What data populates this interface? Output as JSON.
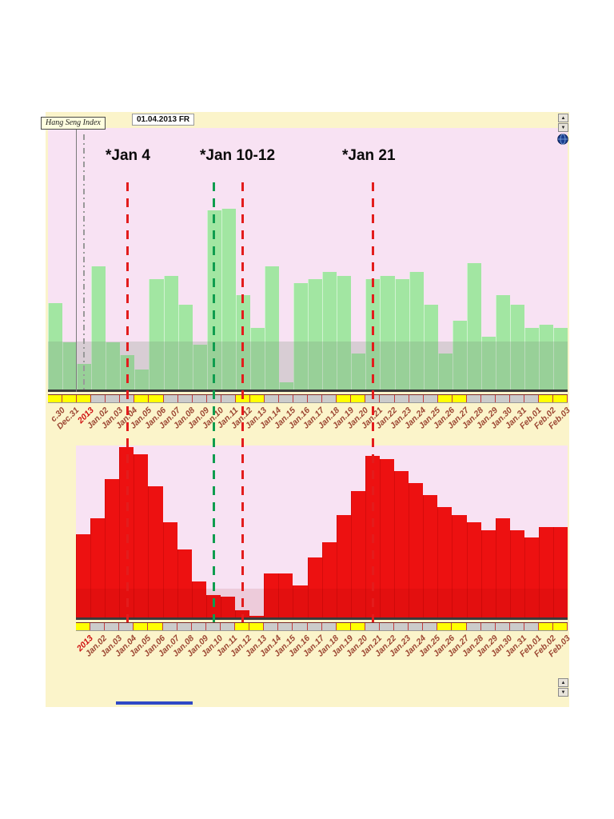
{
  "window": {
    "instrument_label": "Hang Seng Index",
    "date_readout": "01.04.2013 FR"
  },
  "annotations": [
    {
      "text": "*Jan 4"
    },
    {
      "text": "*Jan 10-12"
    },
    {
      "text": "*Jan 21"
    }
  ],
  "scrollbars": {
    "up_glyph": "▲",
    "down_glyph": "▼"
  },
  "colors": {
    "page_bg": "#ffffff",
    "app_bg": "#fbf4ca",
    "plot_bg": "#f8e2f3",
    "green_bar": "#a2e6a2",
    "red_bar": "#ed1111",
    "weekend_band": "#ffff00",
    "band_bg": "#cbcbcb",
    "tick_red": "#c23b3b",
    "label_color": "#9c4733",
    "year_label_color": "#cf1010",
    "marker_red": "#e31c1c",
    "marker_green": "#0f9d4f",
    "cursor_gray": "#999999"
  },
  "chart_data": [
    {
      "type": "bar",
      "panel": "upper",
      "title": "",
      "xlabel": "",
      "ylabel": "",
      "ylim": [
        0,
        100
      ],
      "units": "relative-percent (no y-axis labels visible)",
      "categories": [
        "c.30",
        "Dec.31",
        "2013",
        "Jan.02",
        "Jan.03",
        "Jan.04",
        "Jan.05",
        "Jan.06",
        "Jan.07",
        "Jan.08",
        "Jan.09",
        "Jan.10",
        "Jan.11",
        "Jan.12",
        "Jan.13",
        "Jan.14",
        "Jan.15",
        "Jan.16",
        "Jan.17",
        "Jan.18",
        "Jan.19",
        "Jan.20",
        "Jan.21",
        "Jan.22",
        "Jan.23",
        "Jan.24",
        "Jan.25",
        "Jan.26",
        "Jan.27",
        "Jan.28",
        "Jan.29",
        "Jan.30",
        "Jan.31",
        "Feb.01",
        "Feb.02",
        "Feb.03"
      ],
      "values": [
        48,
        26,
        14,
        68,
        26,
        19,
        11,
        61,
        63,
        47,
        25,
        99,
        100,
        52,
        34,
        68,
        4,
        59,
        61,
        65,
        63,
        20,
        61,
        63,
        61,
        65,
        47,
        20,
        38,
        70,
        29,
        52,
        47,
        34,
        36,
        34
      ],
      "weekend": [
        true,
        true,
        true,
        false,
        false,
        false,
        true,
        true,
        false,
        false,
        false,
        false,
        false,
        true,
        true,
        false,
        false,
        false,
        false,
        false,
        true,
        true,
        false,
        false,
        false,
        false,
        false,
        true,
        true,
        false,
        false,
        false,
        false,
        false,
        true,
        true
      ]
    },
    {
      "type": "bar",
      "panel": "lower",
      "title": "",
      "xlabel": "",
      "ylabel": "",
      "ylim": [
        0,
        100
      ],
      "units": "relative-percent (no y-axis labels visible)",
      "categories": [
        "2013",
        "Jan.02",
        "Jan.03",
        "Jan.04",
        "Jan.05",
        "Jan.06",
        "Jan.07",
        "Jan.08",
        "Jan.09",
        "Jan.10",
        "Jan.11",
        "Jan.12",
        "Jan.13",
        "Jan.14",
        "Jan.15",
        "Jan.16",
        "Jan.17",
        "Jan.18",
        "Jan.19",
        "Jan.20",
        "Jan.21",
        "Jan.22",
        "Jan.23",
        "Jan.24",
        "Jan.25",
        "Jan.26",
        "Jan.27",
        "Jan.28",
        "Jan.29",
        "Jan.30",
        "Jan.31",
        "Feb.01",
        "Feb.02",
        "Feb.03"
      ],
      "values": [
        49,
        58,
        81,
        100,
        96,
        77,
        56,
        40,
        21,
        13,
        12,
        4,
        1,
        26,
        26,
        19,
        35,
        44,
        60,
        74,
        95,
        93,
        86,
        79,
        72,
        65,
        60,
        56,
        51,
        58,
        51,
        47,
        53,
        53
      ],
      "weekend": [
        true,
        false,
        false,
        false,
        true,
        true,
        false,
        false,
        false,
        false,
        false,
        true,
        true,
        false,
        false,
        false,
        false,
        false,
        true,
        true,
        false,
        false,
        false,
        false,
        false,
        true,
        true,
        false,
        false,
        false,
        false,
        false,
        true,
        true
      ]
    }
  ],
  "markers": [
    {
      "id": "jan01-cursor",
      "date": "2013",
      "style": "dashdot",
      "color": "#999999",
      "index": 2
    },
    {
      "id": "jan04",
      "date": "Jan.04",
      "style": "dashed",
      "color": "#e31c1c",
      "index": 5
    },
    {
      "id": "jan10",
      "date": "Jan.10",
      "style": "dashed",
      "color": "#0f9d4f",
      "index": 11
    },
    {
      "id": "jan12",
      "date": "Jan.12",
      "style": "dashed",
      "color": "#e31c1c",
      "index": 13
    },
    {
      "id": "jan21",
      "date": "Jan.21",
      "style": "dashed",
      "color": "#e31c1c",
      "index": 22
    }
  ]
}
